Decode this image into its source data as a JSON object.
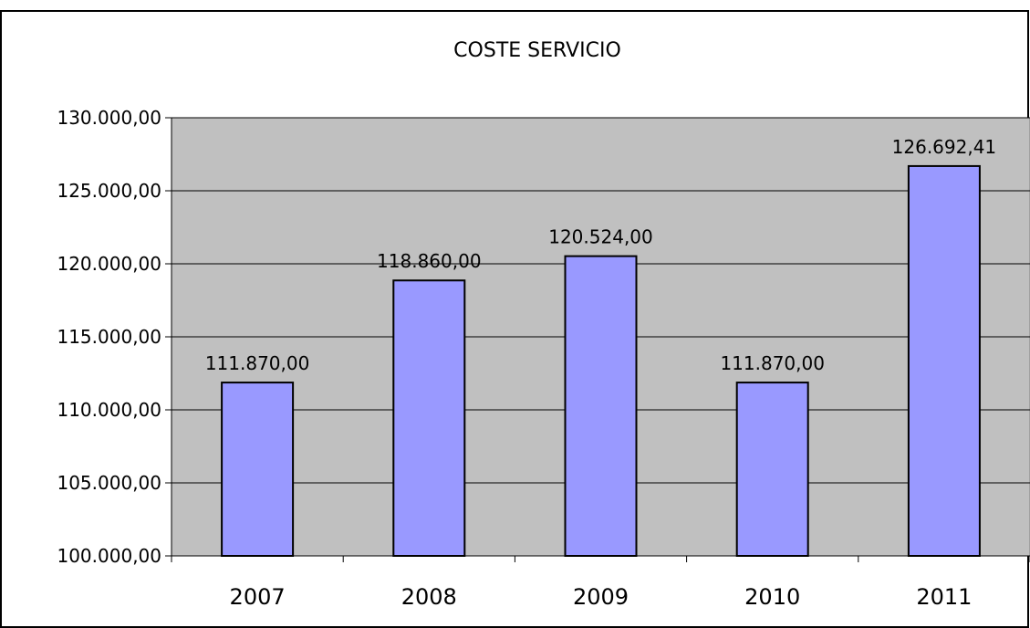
{
  "chart_data": {
    "type": "bar",
    "title": "COSTE SERVICIO",
    "categories": [
      "2007",
      "2008",
      "2009",
      "2010",
      "2011"
    ],
    "values": [
      111870.0,
      118860.0,
      120524.0,
      111870.0,
      126692.41
    ],
    "value_labels": [
      "111.870,00",
      "118.860,00",
      "120.524,00",
      "111.870,00",
      "126.692,41"
    ],
    "yticks": [
      100000,
      105000,
      110000,
      115000,
      120000,
      125000,
      130000
    ],
    "ytick_labels": [
      "100.000,00",
      "105.000,00",
      "110.000,00",
      "115.000,00",
      "120.000,00",
      "125.000,00",
      "130.000,00"
    ],
    "ylim": [
      100000,
      130000
    ],
    "xlabel": "",
    "ylabel": "",
    "grid": true,
    "legend": "none",
    "colors": {
      "plot_background": "#c0c0c0",
      "bar_fill": "#9999ff",
      "bar_stroke": "#000000",
      "gridline": "#000000",
      "border": "#000000"
    }
  }
}
